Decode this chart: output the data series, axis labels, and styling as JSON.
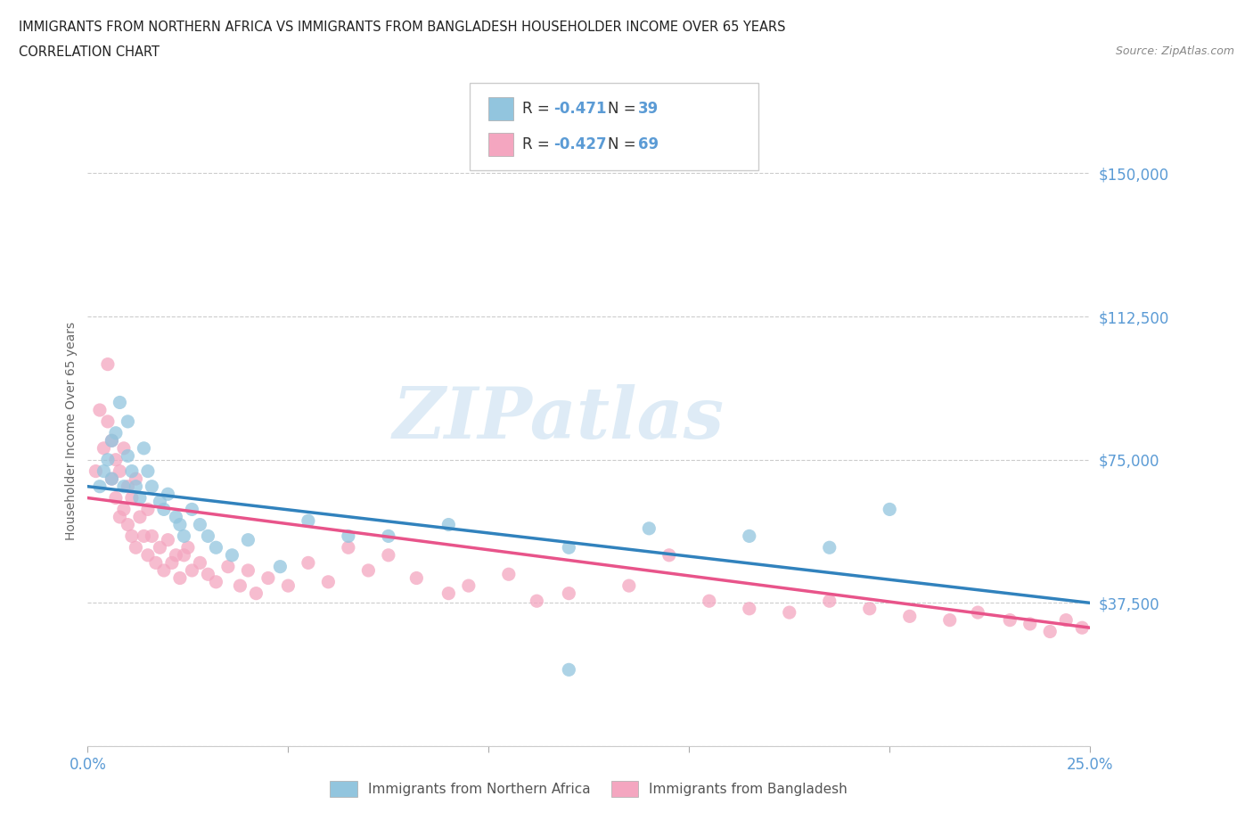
{
  "title_line1": "IMMIGRANTS FROM NORTHERN AFRICA VS IMMIGRANTS FROM BANGLADESH HOUSEHOLDER INCOME OVER 65 YEARS",
  "title_line2": "CORRELATION CHART",
  "source_text": "Source: ZipAtlas.com",
  "ylabel": "Householder Income Over 65 years",
  "xlim": [
    0.0,
    0.25
  ],
  "ylim": [
    0,
    165000
  ],
  "xticks": [
    0.0,
    0.05,
    0.1,
    0.15,
    0.2,
    0.25
  ],
  "xticklabels": [
    "0.0%",
    "",
    "",
    "",
    "",
    "25.0%"
  ],
  "yticks": [
    0,
    37500,
    75000,
    112500,
    150000
  ],
  "yticklabels": [
    "",
    "$37,500",
    "$75,000",
    "$112,500",
    "$150,000"
  ],
  "color_blue": "#92c5de",
  "color_pink": "#f4a6c0",
  "trend_blue": "#3182bd",
  "trend_pink": "#e8548a",
  "R_blue": -0.471,
  "N_blue": 39,
  "R_pink": -0.427,
  "N_pink": 69,
  "watermark": "ZIPatlas",
  "tick_color": "#5b9bd5",
  "legend_labels": [
    "Immigrants from Northern Africa",
    "Immigrants from Bangladesh"
  ],
  "blue_x": [
    0.003,
    0.004,
    0.005,
    0.006,
    0.006,
    0.007,
    0.008,
    0.009,
    0.01,
    0.01,
    0.011,
    0.012,
    0.013,
    0.014,
    0.015,
    0.016,
    0.018,
    0.019,
    0.02,
    0.022,
    0.023,
    0.024,
    0.026,
    0.028,
    0.03,
    0.032,
    0.036,
    0.04,
    0.048,
    0.055,
    0.065,
    0.075,
    0.09,
    0.12,
    0.14,
    0.165,
    0.185,
    0.2,
    0.12
  ],
  "blue_y": [
    68000,
    72000,
    75000,
    80000,
    70000,
    82000,
    90000,
    68000,
    76000,
    85000,
    72000,
    68000,
    65000,
    78000,
    72000,
    68000,
    64000,
    62000,
    66000,
    60000,
    58000,
    55000,
    62000,
    58000,
    55000,
    52000,
    50000,
    54000,
    47000,
    59000,
    55000,
    55000,
    58000,
    52000,
    57000,
    55000,
    52000,
    62000,
    20000
  ],
  "pink_x": [
    0.002,
    0.003,
    0.004,
    0.005,
    0.005,
    0.006,
    0.006,
    0.007,
    0.007,
    0.008,
    0.008,
    0.009,
    0.009,
    0.01,
    0.01,
    0.011,
    0.011,
    0.012,
    0.012,
    0.013,
    0.014,
    0.015,
    0.015,
    0.016,
    0.017,
    0.018,
    0.019,
    0.02,
    0.021,
    0.022,
    0.023,
    0.024,
    0.025,
    0.026,
    0.028,
    0.03,
    0.032,
    0.035,
    0.038,
    0.04,
    0.042,
    0.045,
    0.05,
    0.055,
    0.06,
    0.065,
    0.07,
    0.075,
    0.082,
    0.09,
    0.095,
    0.105,
    0.112,
    0.12,
    0.135,
    0.145,
    0.155,
    0.165,
    0.175,
    0.185,
    0.195,
    0.205,
    0.215,
    0.222,
    0.23,
    0.235,
    0.24,
    0.244,
    0.248
  ],
  "pink_y": [
    72000,
    88000,
    78000,
    100000,
    85000,
    80000,
    70000,
    75000,
    65000,
    72000,
    60000,
    78000,
    62000,
    68000,
    58000,
    65000,
    55000,
    70000,
    52000,
    60000,
    55000,
    62000,
    50000,
    55000,
    48000,
    52000,
    46000,
    54000,
    48000,
    50000,
    44000,
    50000,
    52000,
    46000,
    48000,
    45000,
    43000,
    47000,
    42000,
    46000,
    40000,
    44000,
    42000,
    48000,
    43000,
    52000,
    46000,
    50000,
    44000,
    40000,
    42000,
    45000,
    38000,
    40000,
    42000,
    50000,
    38000,
    36000,
    35000,
    38000,
    36000,
    34000,
    33000,
    35000,
    33000,
    32000,
    30000,
    33000,
    31000
  ]
}
